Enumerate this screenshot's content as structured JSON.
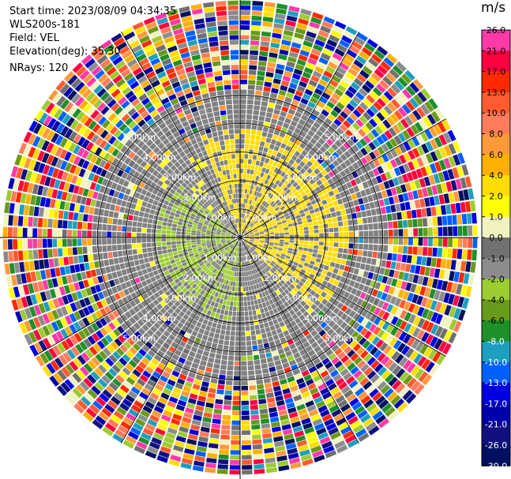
{
  "meta": {
    "start_time": "Start time: 2023/08/09 04:34:35",
    "instrument": "WLS200s-181",
    "field": "Field: VEL",
    "elevation": "Elevation(deg): 35.30",
    "nrays": "NRays: 120"
  },
  "colorbar": {
    "unit": "m/s",
    "ticks": [
      "26.0",
      "21.0",
      "17.0",
      "13.0",
      "10.0",
      "8.0",
      "6.0",
      "4.0",
      "2.0",
      "1.0",
      "0.0",
      "-1.0",
      "-2.0",
      "-4.0",
      "-6.0",
      "-8.0",
      "-10.0",
      "-13.0",
      "-17.0",
      "-21.0",
      "-26.0",
      "-30.0"
    ],
    "colors": [
      "#ff3aa8",
      "#ff0040",
      "#ff2a00",
      "#ff5a30",
      "#ff7b5a",
      "#ff9a3a",
      "#ffb000",
      "#ffdd00",
      "#ffff00",
      "#f2f2c0",
      "#707070",
      "#8c8c8c",
      "#9ccc30",
      "#6a9a1a",
      "#1f8f2a",
      "#1f9fbf",
      "#0060ff",
      "#0000e0",
      "#0000aa",
      "#101080",
      "#001060"
    ]
  },
  "chart_data": {
    "type": "heatmap",
    "projection": "polar PPI",
    "field": "VEL",
    "units": "m/s",
    "nrays": 120,
    "elevation_deg": 35.3,
    "value_range": [
      -30.0,
      26.0
    ],
    "range_rings_km": [
      1.0,
      2.0,
      3.0,
      4.0,
      5.0
    ],
    "ring_labels": [
      "1.00km",
      "2.00km",
      "3.00km",
      "4.00km",
      "5.00km"
    ],
    "max_range_km": 5.0
  }
}
